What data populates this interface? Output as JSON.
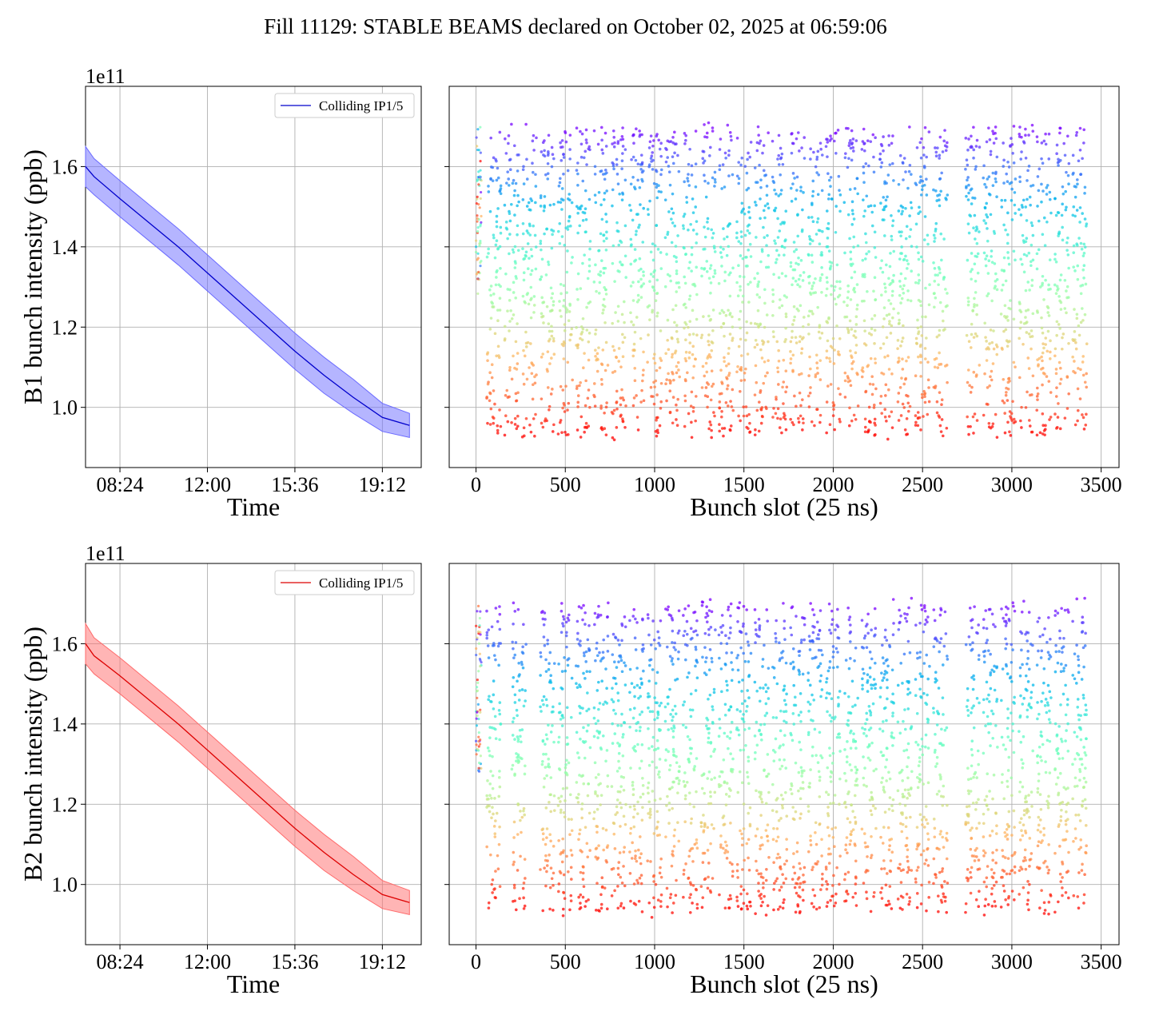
{
  "title": "Fill 11129: STABLE BEAMS declared on October 02, 2025 at 06:59:06",
  "colors": {
    "b1_line": "#0000cc",
    "b1_band": "#6b6bff",
    "b2_line": "#dd0000",
    "b2_band": "#ff6b6b",
    "grid": "#b0b0b0",
    "colormap": "rainbow"
  },
  "chart_data": [
    {
      "type": "line",
      "panel": "B1 time series",
      "ylabel": "B1 bunch intensity (ppb)",
      "xlabel": "Time",
      "offset_text": "1e11",
      "xticks": [
        "08:24",
        "12:00",
        "15:36",
        "19:12"
      ],
      "xlim": [
        "06:59",
        "20:48"
      ],
      "yticks": [
        "1.0",
        "1.2",
        "1.4",
        "1.6"
      ],
      "ylim": [
        0.85,
        1.8
      ],
      "legend": {
        "label": "Colliding IP1/5",
        "position": "upper right"
      },
      "grid": true,
      "series": [
        {
          "name": "Colliding IP1/5",
          "x": [
            "06:59",
            "07:20",
            "08:24",
            "09:36",
            "10:48",
            "12:00",
            "13:12",
            "14:24",
            "15:36",
            "16:48",
            "18:00",
            "19:12",
            "20:19"
          ],
          "y": [
            1.6,
            1.575,
            1.52,
            1.46,
            1.4,
            1.335,
            1.27,
            1.205,
            1.14,
            1.08,
            1.025,
            0.975,
            0.955
          ],
          "band_lower": [
            1.55,
            1.53,
            1.475,
            1.415,
            1.355,
            1.29,
            1.225,
            1.16,
            1.095,
            1.035,
            0.985,
            0.94,
            0.925
          ],
          "band_upper": [
            1.65,
            1.62,
            1.565,
            1.505,
            1.445,
            1.38,
            1.315,
            1.25,
            1.185,
            1.125,
            1.07,
            1.01,
            0.985
          ]
        }
      ]
    },
    {
      "type": "scatter",
      "panel": "B1 bunch-by-bunch",
      "xlabel": "Bunch slot (25 ns)",
      "xticks": [
        "0",
        "500",
        "1000",
        "1500",
        "2000",
        "2500",
        "3000",
        "3500"
      ],
      "xlim": [
        -150,
        3600
      ],
      "ylim": [
        0.85,
        1.8
      ],
      "grid": true,
      "colormap": "rainbow",
      "trains_start_slots": [
        60,
        160,
        260,
        360,
        460,
        560,
        660,
        760,
        860,
        960,
        1060,
        1160,
        1260,
        1360,
        1460,
        1560,
        1660,
        1760,
        1860,
        1960,
        2060,
        2160,
        2260,
        2360,
        2460,
        2560,
        2740,
        2840,
        2940,
        3040,
        3140,
        3240,
        3340
      ],
      "train_length_slots": 80,
      "y_range_per_slot": [
        0.93,
        1.7
      ],
      "pilot_slots": [
        0,
        30
      ]
    },
    {
      "type": "line",
      "panel": "B2 time series",
      "ylabel": "B2 bunch intensity (ppb)",
      "xlabel": "Time",
      "offset_text": "1e11",
      "xticks": [
        "08:24",
        "12:00",
        "15:36",
        "19:12"
      ],
      "xlim": [
        "06:59",
        "20:48"
      ],
      "yticks": [
        "1.0",
        "1.2",
        "1.4",
        "1.6"
      ],
      "ylim": [
        0.85,
        1.8
      ],
      "legend": {
        "label": "Colliding IP1/5",
        "position": "upper right"
      },
      "grid": true,
      "series": [
        {
          "name": "Colliding IP1/5",
          "x": [
            "06:59",
            "07:20",
            "08:24",
            "09:36",
            "10:48",
            "12:00",
            "13:12",
            "14:24",
            "15:36",
            "16:48",
            "18:00",
            "19:12",
            "20:19"
          ],
          "y": [
            1.6,
            1.57,
            1.52,
            1.46,
            1.4,
            1.335,
            1.27,
            1.205,
            1.14,
            1.08,
            1.025,
            0.975,
            0.955
          ],
          "band_lower": [
            1.55,
            1.525,
            1.475,
            1.415,
            1.355,
            1.29,
            1.225,
            1.16,
            1.095,
            1.035,
            0.985,
            0.94,
            0.925
          ],
          "band_upper": [
            1.65,
            1.615,
            1.565,
            1.505,
            1.445,
            1.38,
            1.315,
            1.25,
            1.185,
            1.125,
            1.07,
            1.01,
            0.985
          ]
        }
      ]
    },
    {
      "type": "scatter",
      "panel": "B2 bunch-by-bunch",
      "xlabel": "Bunch slot (25 ns)",
      "xticks": [
        "0",
        "500",
        "1000",
        "1500",
        "2000",
        "2500",
        "3000",
        "3500"
      ],
      "xlim": [
        -150,
        3600
      ],
      "ylim": [
        0.85,
        1.8
      ],
      "grid": true,
      "colormap": "rainbow",
      "trains_start_slots": [
        60,
        200,
        360,
        460,
        560,
        660,
        760,
        860,
        960,
        1060,
        1160,
        1260,
        1360,
        1460,
        1560,
        1660,
        1760,
        1860,
        1960,
        2060,
        2160,
        2260,
        2360,
        2460,
        2560,
        2740,
        2840,
        2940,
        3040,
        3140,
        3240,
        3340
      ],
      "train_length_slots": 80,
      "y_range_per_slot": [
        0.93,
        1.7
      ],
      "pilot_slots": [
        0,
        30
      ]
    }
  ]
}
